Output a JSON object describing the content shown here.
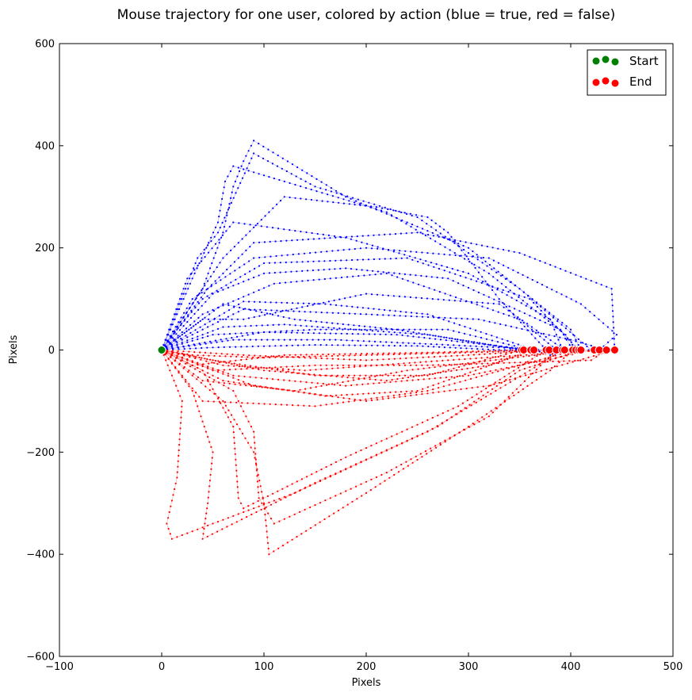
{
  "chart_data": {
    "type": "scatter",
    "title": "Mouse trajectory for one user, colored by action (blue = true, red = false)",
    "xlabel": "Pixels",
    "ylabel": "Pixels",
    "xlim": [
      -100,
      500
    ],
    "ylim": [
      -600,
      600
    ],
    "xticks": [
      -100,
      0,
      100,
      200,
      300,
      400,
      500
    ],
    "xtick_labels": [
      "−100",
      "0",
      "100",
      "200",
      "300",
      "400",
      "500"
    ],
    "yticks": [
      -600,
      -400,
      -200,
      0,
      200,
      400,
      600
    ],
    "ytick_labels": [
      "−600",
      "−400",
      "−200",
      "0",
      "200",
      "400",
      "600"
    ],
    "grid": false,
    "legend": {
      "placement": "top-right",
      "entries": [
        {
          "label": "Start",
          "color": "#008000"
        },
        {
          "label": "End",
          "color": "#ff0000"
        }
      ]
    },
    "colors": {
      "true": "#0000ff",
      "false": "#ff0000",
      "start": "#008000",
      "end": "#ff0000"
    },
    "start_point": [
      0,
      0
    ],
    "end_points": [
      {
        "x": 352,
        "y": 0
      },
      {
        "x": 354,
        "y": 0
      },
      {
        "x": 361,
        "y": 0
      },
      {
        "x": 364,
        "y": 0
      },
      {
        "x": 376,
        "y": 0
      },
      {
        "x": 379,
        "y": 0
      },
      {
        "x": 386,
        "y": 0
      },
      {
        "x": 392,
        "y": 0
      },
      {
        "x": 394,
        "y": 0
      },
      {
        "x": 402,
        "y": 0
      },
      {
        "x": 405,
        "y": 0
      },
      {
        "x": 408,
        "y": 0
      },
      {
        "x": 410,
        "y": 0
      },
      {
        "x": 423,
        "y": 0
      },
      {
        "x": 428,
        "y": 0
      },
      {
        "x": 435,
        "y": 0
      },
      {
        "x": 443,
        "y": 0
      }
    ],
    "series": [
      {
        "action": "true",
        "color": "#0000ff",
        "trajectories": [
          [
            [
              0,
              0
            ],
            [
              40,
              120
            ],
            [
              60,
              230
            ],
            [
              70,
              320
            ],
            [
              80,
              370
            ],
            [
              90,
              410
            ],
            [
              180,
              300
            ],
            [
              300,
              200
            ],
            [
              400,
              40
            ],
            [
              410,
              0
            ]
          ],
          [
            [
              0,
              0
            ],
            [
              30,
              140
            ],
            [
              55,
              250
            ],
            [
              62,
              330
            ],
            [
              70,
              360
            ],
            [
              120,
              330
            ],
            [
              220,
              270
            ],
            [
              320,
              150
            ],
            [
              395,
              30
            ],
            [
              405,
              0
            ]
          ],
          [
            [
              0,
              0
            ],
            [
              35,
              180
            ],
            [
              55,
              230
            ],
            [
              90,
              385
            ],
            [
              150,
              320
            ],
            [
              250,
              260
            ],
            [
              350,
              120
            ],
            [
              420,
              0
            ]
          ],
          [
            [
              0,
              0
            ],
            [
              60,
              180
            ],
            [
              120,
              300
            ],
            [
              210,
              280
            ],
            [
              260,
              260
            ],
            [
              280,
              230
            ],
            [
              330,
              100
            ],
            [
              376,
              0
            ]
          ],
          [
            [
              0,
              0
            ],
            [
              25,
              140
            ],
            [
              70,
              250
            ],
            [
              180,
              220
            ],
            [
              300,
              150
            ],
            [
              380,
              60
            ],
            [
              392,
              0
            ]
          ],
          [
            [
              0,
              0
            ],
            [
              50,
              110
            ],
            [
              100,
              150
            ],
            [
              180,
              160
            ],
            [
              280,
              140
            ],
            [
              390,
              40
            ],
            [
              402,
              0
            ]
          ],
          [
            [
              0,
              0
            ],
            [
              40,
              60
            ],
            [
              80,
              60
            ],
            [
              200,
              110
            ],
            [
              330,
              90
            ],
            [
              394,
              0
            ]
          ],
          [
            [
              0,
              0
            ],
            [
              60,
              45
            ],
            [
              120,
              50
            ],
            [
              260,
              30
            ],
            [
              352,
              0
            ]
          ],
          [
            [
              0,
              0
            ],
            [
              50,
              30
            ],
            [
              150,
              40
            ],
            [
              280,
              40
            ],
            [
              361,
              0
            ]
          ],
          [
            [
              0,
              0
            ],
            [
              100,
              35
            ],
            [
              230,
              30
            ],
            [
              364,
              0
            ]
          ],
          [
            [
              0,
              0
            ],
            [
              70,
              20
            ],
            [
              170,
              20
            ],
            [
              280,
              10
            ],
            [
              379,
              0
            ]
          ],
          [
            [
              0,
              0
            ],
            [
              40,
              70
            ],
            [
              110,
              130
            ],
            [
              220,
              150
            ],
            [
              350,
              60
            ],
            [
              386,
              0
            ]
          ],
          [
            [
              0,
              0
            ],
            [
              30,
              100
            ],
            [
              90,
              180
            ],
            [
              200,
              200
            ],
            [
              320,
              180
            ],
            [
              410,
              90
            ],
            [
              445,
              30
            ],
            [
              428,
              0
            ]
          ],
          [
            [
              0,
              0
            ],
            [
              45,
              120
            ],
            [
              90,
              210
            ],
            [
              250,
              230
            ],
            [
              350,
              190
            ],
            [
              440,
              120
            ],
            [
              443,
              0
            ]
          ],
          [
            [
              0,
              0
            ],
            [
              15,
              40
            ],
            [
              40,
              100
            ],
            [
              100,
              170
            ],
            [
              240,
              180
            ],
            [
              360,
              100
            ],
            [
              408,
              0
            ]
          ],
          [
            [
              0,
              0
            ],
            [
              80,
              80
            ],
            [
              200,
              70
            ],
            [
              310,
              60
            ],
            [
              400,
              20
            ],
            [
              435,
              0
            ]
          ],
          [
            [
              0,
              0
            ],
            [
              20,
              30
            ],
            [
              60,
              90
            ],
            [
              130,
              60
            ],
            [
              230,
              40
            ],
            [
              354,
              0
            ]
          ],
          [
            [
              0,
              0
            ],
            [
              80,
              95
            ],
            [
              160,
              90
            ],
            [
              260,
              70
            ],
            [
              380,
              -10
            ],
            [
              405,
              0
            ]
          ],
          [
            [
              0,
              0
            ],
            [
              50,
              5
            ],
            [
              150,
              10
            ],
            [
              250,
              8
            ],
            [
              330,
              0
            ],
            [
              423,
              0
            ]
          ]
        ]
      },
      {
        "action": "false",
        "color": "#ff0000",
        "trajectories": [
          [
            [
              0,
              0
            ],
            [
              30,
              -80
            ],
            [
              50,
              -200
            ],
            [
              45,
              -300
            ],
            [
              40,
              -370
            ],
            [
              150,
              -260
            ],
            [
              270,
              -150
            ],
            [
              350,
              -40
            ],
            [
              410,
              0
            ]
          ],
          [
            [
              0,
              0
            ],
            [
              20,
              -100
            ],
            [
              15,
              -250
            ],
            [
              5,
              -340
            ],
            [
              10,
              -370
            ],
            [
              130,
              -280
            ],
            [
              260,
              -160
            ],
            [
              360,
              -40
            ],
            [
              392,
              0
            ]
          ],
          [
            [
              0,
              0
            ],
            [
              60,
              -100
            ],
            [
              90,
              -200
            ],
            [
              100,
              -300
            ],
            [
              105,
              -400
            ],
            [
              200,
              -280
            ],
            [
              300,
              -150
            ],
            [
              380,
              -40
            ],
            [
              402,
              0
            ]
          ],
          [
            [
              0,
              0
            ],
            [
              70,
              -80
            ],
            [
              90,
              -160
            ],
            [
              95,
              -290
            ],
            [
              110,
              -340
            ],
            [
              220,
              -240
            ],
            [
              320,
              -130
            ],
            [
              386,
              0
            ]
          ],
          [
            [
              0,
              0
            ],
            [
              40,
              -40
            ],
            [
              70,
              -150
            ],
            [
              75,
              -290
            ],
            [
              80,
              -310
            ],
            [
              180,
              -210
            ],
            [
              290,
              -110
            ],
            [
              376,
              0
            ]
          ],
          [
            [
              0,
              0
            ],
            [
              50,
              -20
            ],
            [
              150,
              -50
            ],
            [
              260,
              -50
            ],
            [
              352,
              0
            ]
          ],
          [
            [
              0,
              0
            ],
            [
              100,
              -40
            ],
            [
              220,
              -60
            ],
            [
              320,
              -30
            ],
            [
              361,
              0
            ]
          ],
          [
            [
              0,
              0
            ],
            [
              60,
              -60
            ],
            [
              160,
              -90
            ],
            [
              250,
              -80
            ],
            [
              364,
              0
            ]
          ],
          [
            [
              0,
              0
            ],
            [
              80,
              -10
            ],
            [
              200,
              -20
            ],
            [
              300,
              -10
            ],
            [
              379,
              0
            ]
          ],
          [
            [
              0,
              0
            ],
            [
              40,
              -100
            ],
            [
              150,
              -110
            ],
            [
              260,
              -80
            ],
            [
              350,
              -30
            ],
            [
              405,
              0
            ]
          ],
          [
            [
              0,
              0
            ],
            [
              30,
              -30
            ],
            [
              120,
              -10
            ],
            [
              260,
              -5
            ],
            [
              354,
              0
            ]
          ],
          [
            [
              0,
              0
            ],
            [
              50,
              -40
            ],
            [
              150,
              -30
            ],
            [
              260,
              -30
            ],
            [
              420,
              -20
            ],
            [
              435,
              0
            ]
          ],
          [
            [
              0,
              0
            ],
            [
              70,
              -50
            ],
            [
              180,
              -70
            ],
            [
              300,
              -50
            ],
            [
              423,
              0
            ]
          ],
          [
            [
              0,
              0
            ],
            [
              60,
              -30
            ],
            [
              140,
              -40
            ],
            [
              280,
              -20
            ],
            [
              428,
              0
            ]
          ],
          [
            [
              0,
              0
            ],
            [
              90,
              -70
            ],
            [
              200,
              -100
            ],
            [
              320,
              -70
            ],
            [
              443,
              0
            ]
          ],
          [
            [
              0,
              0
            ],
            [
              30,
              -10
            ],
            [
              100,
              -15
            ],
            [
              200,
              -10
            ],
            [
              394,
              0
            ]
          ],
          [
            [
              0,
              0
            ],
            [
              40,
              -60
            ],
            [
              130,
              -80
            ],
            [
              240,
              -40
            ],
            [
              408,
              0
            ]
          ]
        ]
      }
    ]
  }
}
